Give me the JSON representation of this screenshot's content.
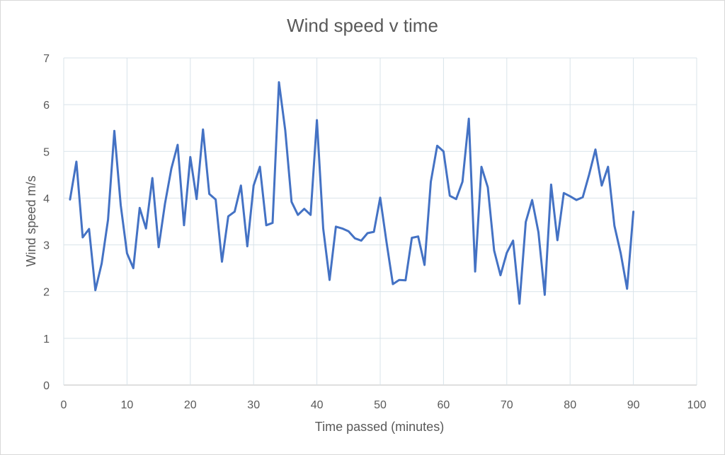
{
  "chart_data": {
    "type": "line",
    "title": "Wind speed v time",
    "xlabel": "Time passed (minutes)",
    "ylabel": "Wind speed m/s",
    "xlim": [
      0,
      100
    ],
    "ylim": [
      0,
      7
    ],
    "x_ticks": [
      0,
      10,
      20,
      30,
      40,
      50,
      60,
      70,
      80,
      90,
      100
    ],
    "y_ticks": [
      0,
      1,
      2,
      3,
      4,
      5,
      6,
      7
    ],
    "grid": true,
    "series": [
      {
        "color": "#4472c4",
        "x": [
          1,
          2,
          3,
          4,
          5,
          6,
          7,
          8,
          9,
          10,
          11,
          12,
          13,
          14,
          15,
          16,
          17,
          18,
          19,
          20,
          21,
          22,
          23,
          24,
          25,
          26,
          27,
          28,
          29,
          30,
          31,
          32,
          33,
          34,
          35,
          36,
          37,
          38,
          39,
          40,
          41,
          42,
          43,
          44,
          45,
          46,
          47,
          48,
          49,
          50,
          51,
          52,
          53,
          54,
          55,
          56,
          57,
          58,
          59,
          60,
          61,
          62,
          63,
          64,
          65,
          66,
          67,
          68,
          69,
          70,
          71,
          72,
          73,
          74,
          75,
          76,
          77,
          78,
          79,
          80,
          81,
          82,
          83,
          84,
          85,
          86,
          87,
          88,
          89,
          90
        ],
        "y": [
          3.97,
          4.78,
          3.16,
          3.34,
          2.03,
          2.6,
          3.54,
          5.44,
          3.85,
          2.82,
          2.5,
          3.79,
          3.35,
          4.43,
          2.95,
          3.88,
          4.63,
          5.14,
          3.42,
          4.88,
          3.98,
          5.47,
          4.09,
          3.97,
          2.64,
          3.61,
          3.71,
          4.27,
          2.97,
          4.27,
          4.67,
          3.42,
          3.47,
          6.48,
          5.45,
          3.92,
          3.64,
          3.77,
          3.64,
          5.67,
          3.35,
          2.25,
          3.39,
          3.35,
          3.29,
          3.14,
          3.09,
          3.25,
          3.28,
          4.01,
          3.06,
          2.16,
          2.25,
          2.24,
          3.15,
          3.18,
          2.57,
          4.35,
          5.12,
          5.0,
          4.05,
          3.98,
          4.35,
          5.7,
          2.43,
          4.67,
          4.23,
          2.88,
          2.35,
          2.83,
          3.09,
          1.74,
          3.49,
          3.96,
          3.27,
          1.93,
          4.29,
          3.1,
          4.11,
          4.04,
          3.96,
          4.02,
          4.5,
          5.04,
          4.27,
          4.67,
          3.41,
          2.82,
          2.06,
          3.71
        ]
      }
    ]
  }
}
